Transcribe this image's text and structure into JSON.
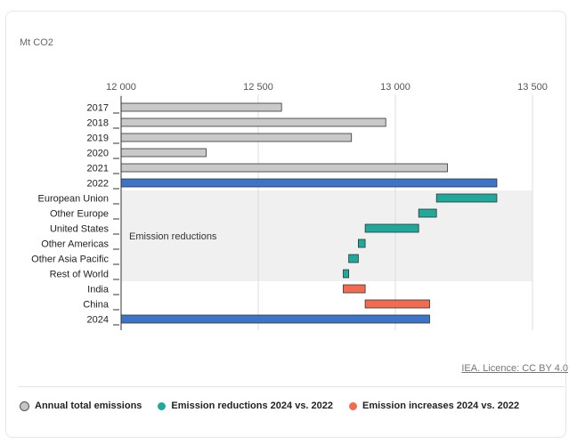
{
  "chart_data": {
    "type": "bar",
    "orientation": "horizontal",
    "unit_label": "Mt CO2",
    "x_ticks": [
      "12 000",
      "12 500",
      "13 000",
      "13 500"
    ],
    "x_tick_values": [
      12000,
      12500,
      13000,
      13500
    ],
    "xlim": [
      12000,
      13500
    ],
    "grid": true,
    "bars": [
      {
        "label": "2017",
        "start": 12000,
        "end": 12585,
        "kind": "total"
      },
      {
        "label": "2018",
        "start": 12000,
        "end": 12965,
        "kind": "total"
      },
      {
        "label": "2019",
        "start": 12000,
        "end": 12840,
        "kind": "total"
      },
      {
        "label": "2020",
        "start": 12000,
        "end": 12310,
        "kind": "total"
      },
      {
        "label": "2021",
        "start": 12000,
        "end": 13190,
        "kind": "total"
      },
      {
        "label": "2022",
        "start": 12000,
        "end": 13370,
        "kind": "highlight"
      },
      {
        "label": "European Union",
        "start": 13150,
        "end": 13370,
        "kind": "reduction"
      },
      {
        "label": "Other Europe",
        "start": 13085,
        "end": 13150,
        "kind": "reduction"
      },
      {
        "label": "United States",
        "start": 12890,
        "end": 13085,
        "kind": "reduction"
      },
      {
        "label": "Other Americas",
        "start": 12865,
        "end": 12890,
        "kind": "reduction"
      },
      {
        "label": "Other Asia Pacific",
        "start": 12830,
        "end": 12865,
        "kind": "reduction"
      },
      {
        "label": "Rest of World",
        "start": 12810,
        "end": 12830,
        "kind": "reduction"
      },
      {
        "label": "India",
        "start": 12810,
        "end": 12890,
        "kind": "increase"
      },
      {
        "label": "China",
        "start": 12890,
        "end": 13125,
        "kind": "increase"
      },
      {
        "label": "2024",
        "start": 12000,
        "end": 13125,
        "kind": "highlight"
      }
    ],
    "shaded_region": {
      "label": "Emission reductions",
      "from_bar": 6,
      "to_bar": 11
    },
    "legend": [
      {
        "label": "Annual total emissions",
        "color": "#c4c4c4"
      },
      {
        "label": "Emission reductions 2024 vs. 2022",
        "color": "#1fa99b"
      },
      {
        "label": "Emission increases 2024 vs. 2022",
        "color": "#f26b50"
      }
    ],
    "legend_placement": "bottom"
  },
  "colors": {
    "total": "#c9c9c9",
    "highlight": "#3c74c9",
    "reduction": "#1fa99b",
    "increase": "#f26b50",
    "grid": "#dcdcdc",
    "shade": "#f0f0f0"
  },
  "credit": "IEA. Licence: CC BY 4.0"
}
